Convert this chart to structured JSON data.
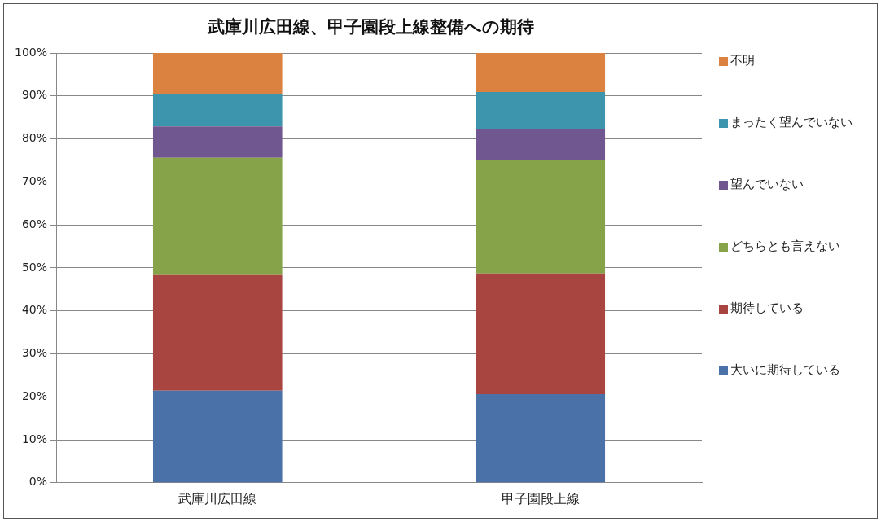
{
  "chart_data": {
    "type": "bar",
    "stacked": true,
    "title": "武庫川広田線、甲子園段上線整備への期待",
    "categories": [
      "武庫川広田線",
      "甲子園段上線"
    ],
    "series": [
      {
        "name": "大いに期待している",
        "color": "#4a72a8",
        "values": [
          21.4,
          20.6
        ]
      },
      {
        "name": "期待している",
        "color": "#a84541",
        "values": [
          26.9,
          28.1
        ]
      },
      {
        "name": "どちらとも言えない",
        "color": "#87a34a",
        "values": [
          27.3,
          26.5
        ]
      },
      {
        "name": "望んでいない",
        "color": "#70578f",
        "values": [
          7.3,
          7.1
        ]
      },
      {
        "name": "まったく望んでいない",
        "color": "#3d95ad",
        "values": [
          7.5,
          8.6
        ]
      },
      {
        "name": "不明",
        "color": "#db8240",
        "values": [
          9.6,
          9.1
        ]
      }
    ],
    "ylim": [
      0,
      100
    ],
    "yticks": [
      {
        "value": 0,
        "label": "0%"
      },
      {
        "value": 10,
        "label": "10%"
      },
      {
        "value": 20,
        "label": "20%"
      },
      {
        "value": 30,
        "label": "30%"
      },
      {
        "value": 40,
        "label": "40%"
      },
      {
        "value": 50,
        "label": "50%"
      },
      {
        "value": 60,
        "label": "60%"
      },
      {
        "value": 70,
        "label": "70%"
      },
      {
        "value": 80,
        "label": "80%"
      },
      {
        "value": 90,
        "label": "90%"
      },
      {
        "value": 100,
        "label": "100%"
      }
    ],
    "grid": "y",
    "legend": "right"
  }
}
